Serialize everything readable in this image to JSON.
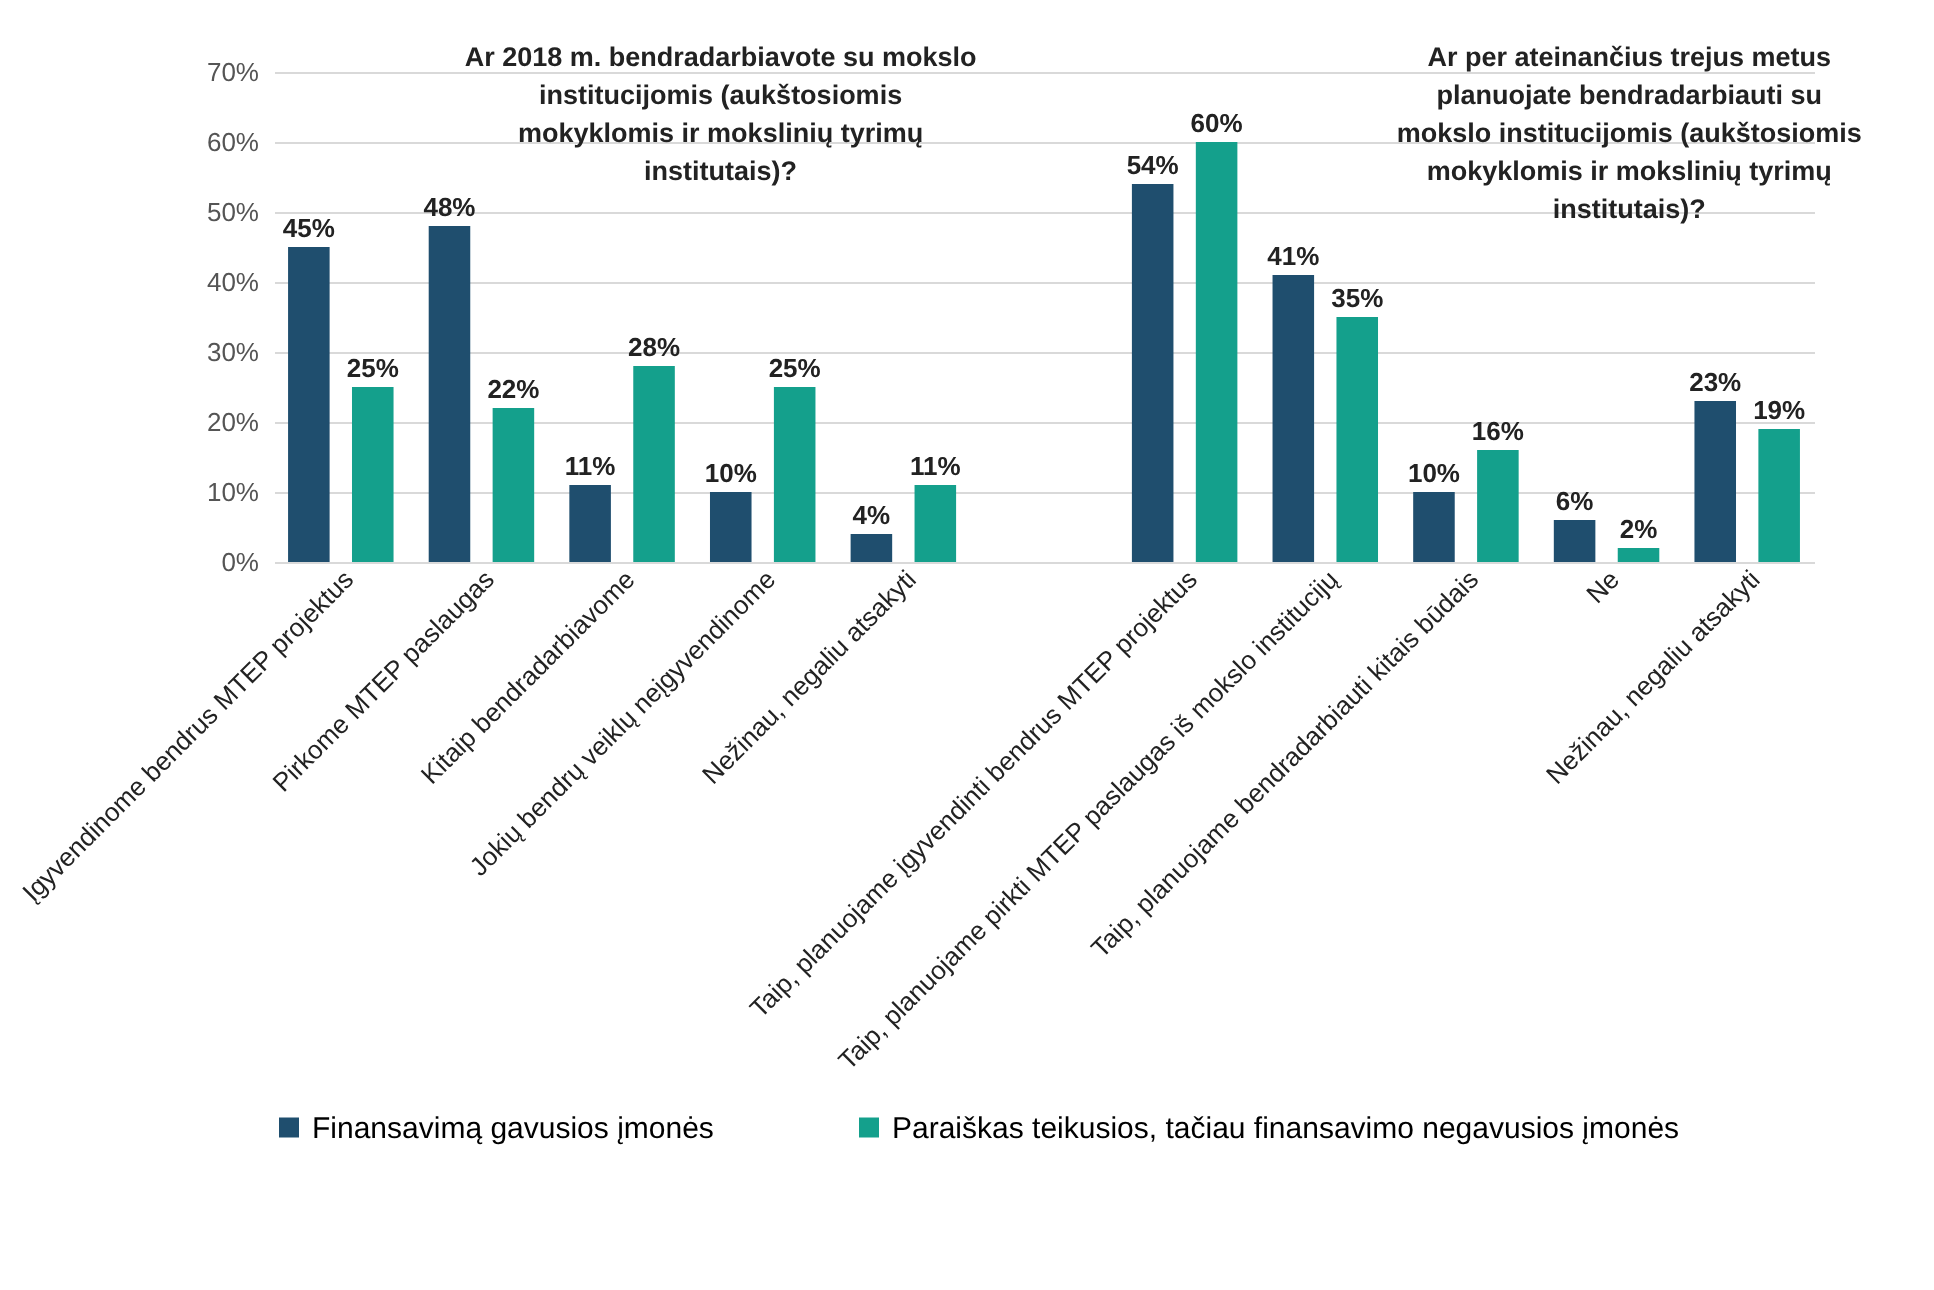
{
  "chart_data": {
    "type": "bar",
    "categories": [
      "Įgyvendinome bendrus MTEP projektus",
      "Pirkome MTEP paslaugas",
      "Kitaip bendradarbiavome",
      "Jokių bendrų veiklų neįgyvendinome",
      "Nežinau, negaliu atsakyti",
      null,
      "Taip, planuojame įgyvendinti bendrus MTEP projektus",
      "Taip, planuojame pirkti MTEP paslaugas iš mokslo institucijų",
      "Taip, planuojame bendradarbiauti kitais būdais",
      "Ne",
      "Nežinau, negaliu atsakyti"
    ],
    "series": [
      {
        "name": "Finansavimą gavusios įmonės",
        "color": "#1f4e6e",
        "values": [
          45,
          48,
          11,
          10,
          4,
          null,
          54,
          41,
          10,
          6,
          23
        ],
        "value_labels": [
          "45%",
          "48%",
          "11%",
          "10%",
          "4%",
          null,
          "54%",
          "41%",
          "10%",
          "6%",
          "23%"
        ]
      },
      {
        "name": "Paraiškas teikusios, tačiau finansavimo negavusios įmonės",
        "color": "#14a08c",
        "values": [
          25,
          22,
          28,
          25,
          11,
          null,
          60,
          35,
          16,
          2,
          19
        ],
        "value_labels": [
          "25%",
          "22%",
          "28%",
          "25%",
          "11%",
          null,
          "60%",
          "35%",
          "16%",
          "2%",
          "19%"
        ]
      }
    ],
    "ylim": [
      0,
      70
    ],
    "yticks": [
      {
        "value": 0,
        "label": "0%"
      },
      {
        "value": 10,
        "label": "10%"
      },
      {
        "value": 20,
        "label": "20%"
      },
      {
        "value": 30,
        "label": "30%"
      },
      {
        "value": 40,
        "label": "40%"
      },
      {
        "value": 50,
        "label": "50%"
      },
      {
        "value": 60,
        "label": "60%"
      },
      {
        "value": 70,
        "label": "70%"
      }
    ],
    "grid": "y",
    "legend": "bottom",
    "annotations": [
      "Ar 2018 m. bendradarbiavote su mokslo institucijomis (aukštosiomis mokyklomis ir mokslinių tyrimų institutais)?",
      "Ar per ateinančius trejus metus planuojate bendradarbiauti su mokslo institucijomis (aukštosiomis mokyklomis ir mokslinių tyrimų institutais)?"
    ]
  }
}
